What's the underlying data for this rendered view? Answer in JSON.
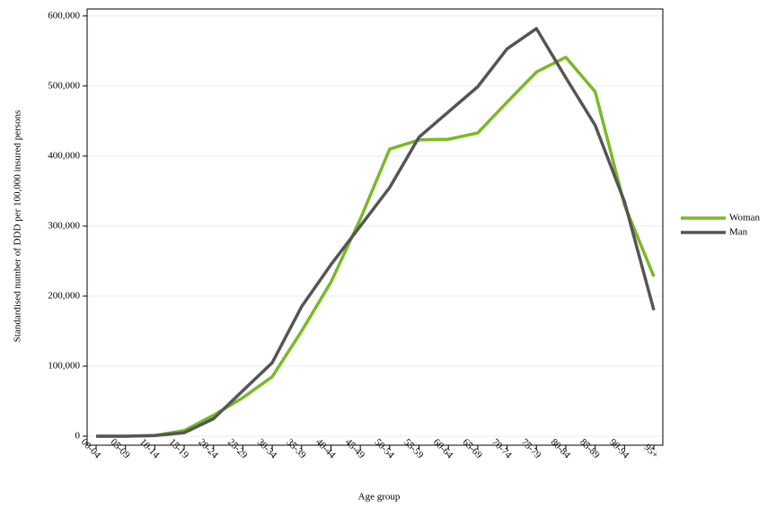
{
  "chart_data": {
    "type": "line",
    "x_label": "Age group",
    "y_label": "Standardised number of DDD per 100,000 insured persons",
    "categories": [
      "00-04",
      "05-09",
      "10-14",
      "15-19",
      "20-24",
      "25-29",
      "30-34",
      "35-39",
      "40-44",
      "45-49",
      "50-54",
      "55-59",
      "60-64",
      "65-69",
      "70-74",
      "75-79",
      "80-84",
      "85-89",
      "90-94",
      "95+"
    ],
    "series": [
      {
        "name": "Woman",
        "color": "#7ab929",
        "values": [
          0,
          0,
          1000,
          8000,
          30000,
          55000,
          85000,
          150000,
          220000,
          310000,
          410000,
          423000,
          424000,
          433000,
          477000,
          520000,
          541000,
          492000,
          330000,
          228000
        ]
      },
      {
        "name": "Man",
        "color": "#555555",
        "values": [
          0,
          0,
          1000,
          5000,
          25000,
          65000,
          105000,
          185000,
          245000,
          300000,
          355000,
          427000,
          463000,
          499000,
          553000,
          582000,
          512000,
          444000,
          335000,
          180000
        ]
      }
    ],
    "ylim": [
      -12800,
      610000
    ],
    "yticks": [
      0,
      {
        "value": 100000,
        "label": "100,000"
      },
      {
        "value": 200000,
        "label": "200,000"
      },
      {
        "value": 300000,
        "label": "300,000"
      },
      {
        "value": 400000,
        "label": "400,000"
      },
      {
        "value": 500000,
        "label": "500,000"
      },
      {
        "value": 600000,
        "label": "600,000"
      }
    ],
    "grid": true,
    "legend": "right"
  }
}
